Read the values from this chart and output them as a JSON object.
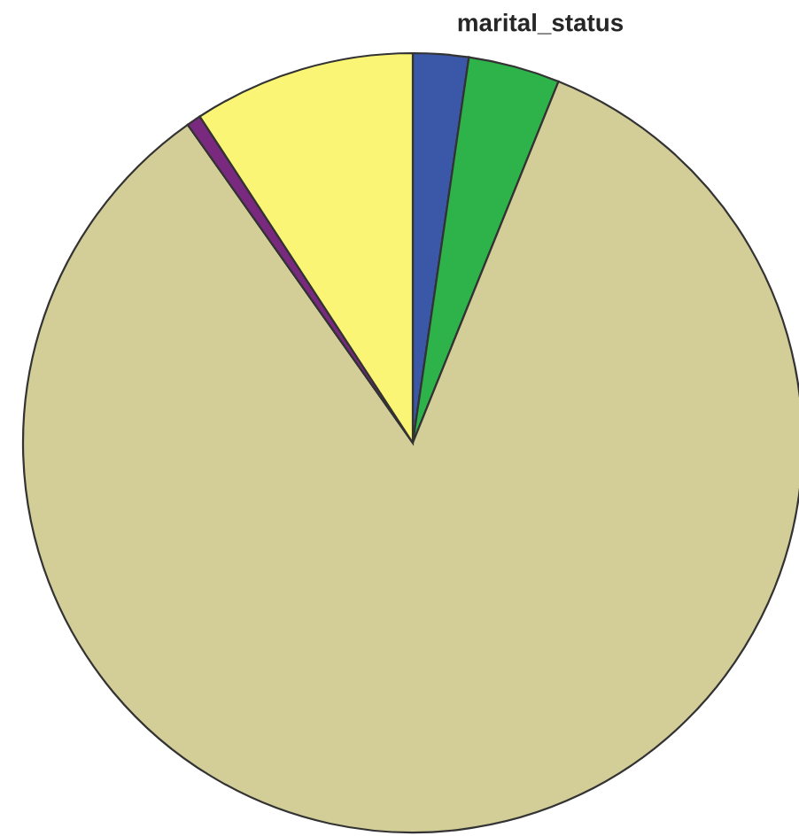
{
  "chart_data": {
    "type": "pie",
    "title": "marital_status",
    "categories": [
      null,
      null,
      null,
      null,
      null
    ],
    "values": [
      2.3,
      3.8,
      84.1,
      0.6,
      9.2
    ],
    "colors": [
      "#3b58a8",
      "#2db34a",
      "#d3ce98",
      "#7a2a7e",
      "#faf574"
    ],
    "legend": false
  }
}
